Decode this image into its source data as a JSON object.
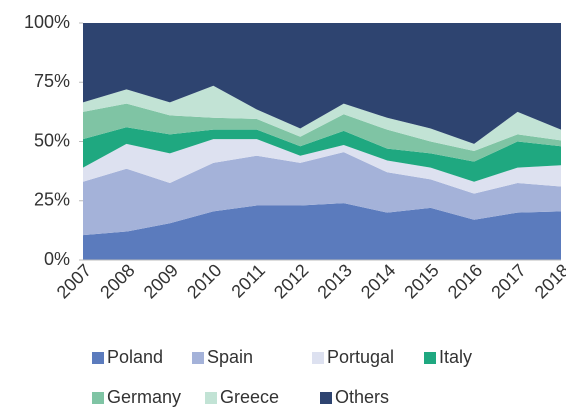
{
  "chart_data": {
    "type": "stacked_area_100",
    "categories": [
      "2007",
      "2008",
      "2009",
      "2010",
      "2011",
      "2012",
      "2013",
      "2014",
      "2015",
      "2016",
      "2017",
      "2018"
    ],
    "series": [
      {
        "name": "Poland",
        "color": "#5b7bbd",
        "values": [
          10.5,
          12,
          15.5,
          20.5,
          23,
          23,
          24,
          20,
          22,
          17,
          20,
          20.5
        ]
      },
      {
        "name": "Spain",
        "color": "#a4b2d9",
        "values": [
          22.5,
          26.5,
          17,
          20.5,
          21,
          18,
          21.5,
          17,
          12,
          11,
          12.5,
          10.5
        ]
      },
      {
        "name": "Portugal",
        "color": "#dde1f0",
        "values": [
          6,
          10.5,
          12.5,
          10,
          7,
          3,
          3,
          5,
          5,
          5,
          6.5,
          9
        ]
      },
      {
        "name": "Italy",
        "color": "#1fa880",
        "values": [
          12,
          7,
          8,
          4,
          4,
          4,
          6,
          5,
          6,
          8.5,
          11,
          8
        ]
      },
      {
        "name": "Germany",
        "color": "#7fc4a4",
        "values": [
          11.5,
          10,
          8,
          5,
          4.5,
          4,
          7,
          8,
          5,
          4.5,
          3,
          2.5
        ]
      },
      {
        "name": "Greece",
        "color": "#c2e3d5",
        "values": [
          4,
          6,
          5.5,
          13.5,
          4,
          3.5,
          4.5,
          5,
          5.5,
          3,
          9.5,
          4.5
        ]
      },
      {
        "name": "Others",
        "color": "#2e4470",
        "values": [
          33.5,
          28,
          33.5,
          26.5,
          36.5,
          44.5,
          34,
          40,
          44.5,
          51,
          37.5,
          45
        ]
      }
    ],
    "ylim": [
      0,
      100
    ],
    "yticks": [
      {
        "value": 0,
        "label": "0%"
      },
      {
        "value": 25,
        "label": "25%"
      },
      {
        "value": 50,
        "label": "50%"
      },
      {
        "value": 75,
        "label": "75%"
      },
      {
        "value": 100,
        "label": "100%"
      }
    ],
    "grid": false
  }
}
